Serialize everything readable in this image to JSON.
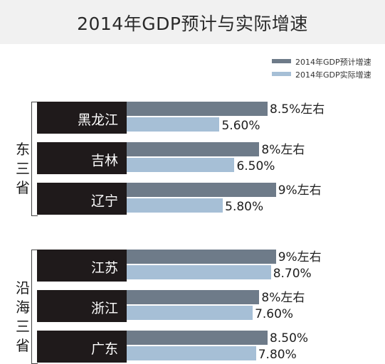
{
  "chart_data": {
    "type": "bar",
    "orientation": "horizontal",
    "title": "2014年GDP预计与实际增速",
    "value_axis": {
      "unit": "%",
      "min": 0,
      "max": 10,
      "shown": false
    },
    "legend": {
      "placement": "top-right"
    },
    "series": [
      {
        "name": "2014年GDP预计增速",
        "color": "#6e7b89"
      },
      {
        "name": "2014年GDP实际增速",
        "color": "#a6bfd6"
      }
    ],
    "groups": [
      {
        "label": "东三省",
        "categories": [
          {
            "name": "黑龙江",
            "forecast": 8.5,
            "actual": 5.6,
            "forecast_label": "8.5%左右",
            "actual_label": "5.60%"
          },
          {
            "name": "吉林",
            "forecast": 8.0,
            "actual": 6.5,
            "forecast_label": "8%左右",
            "actual_label": "6.50%"
          },
          {
            "name": "辽宁",
            "forecast": 9.0,
            "actual": 5.8,
            "forecast_label": "9%左右",
            "actual_label": "5.80%"
          }
        ]
      },
      {
        "label": "沿海三省",
        "categories": [
          {
            "name": "江苏",
            "forecast": 9.0,
            "actual": 8.7,
            "forecast_label": "9%左右",
            "actual_label": "8.70%"
          },
          {
            "name": "浙江",
            "forecast": 8.0,
            "actual": 7.6,
            "forecast_label": "8%左右",
            "actual_label": "7.60%"
          },
          {
            "name": "广东",
            "forecast": 8.5,
            "actual": 7.8,
            "forecast_label": "8.50%",
            "actual_label": "7.80%"
          }
        ]
      }
    ]
  }
}
